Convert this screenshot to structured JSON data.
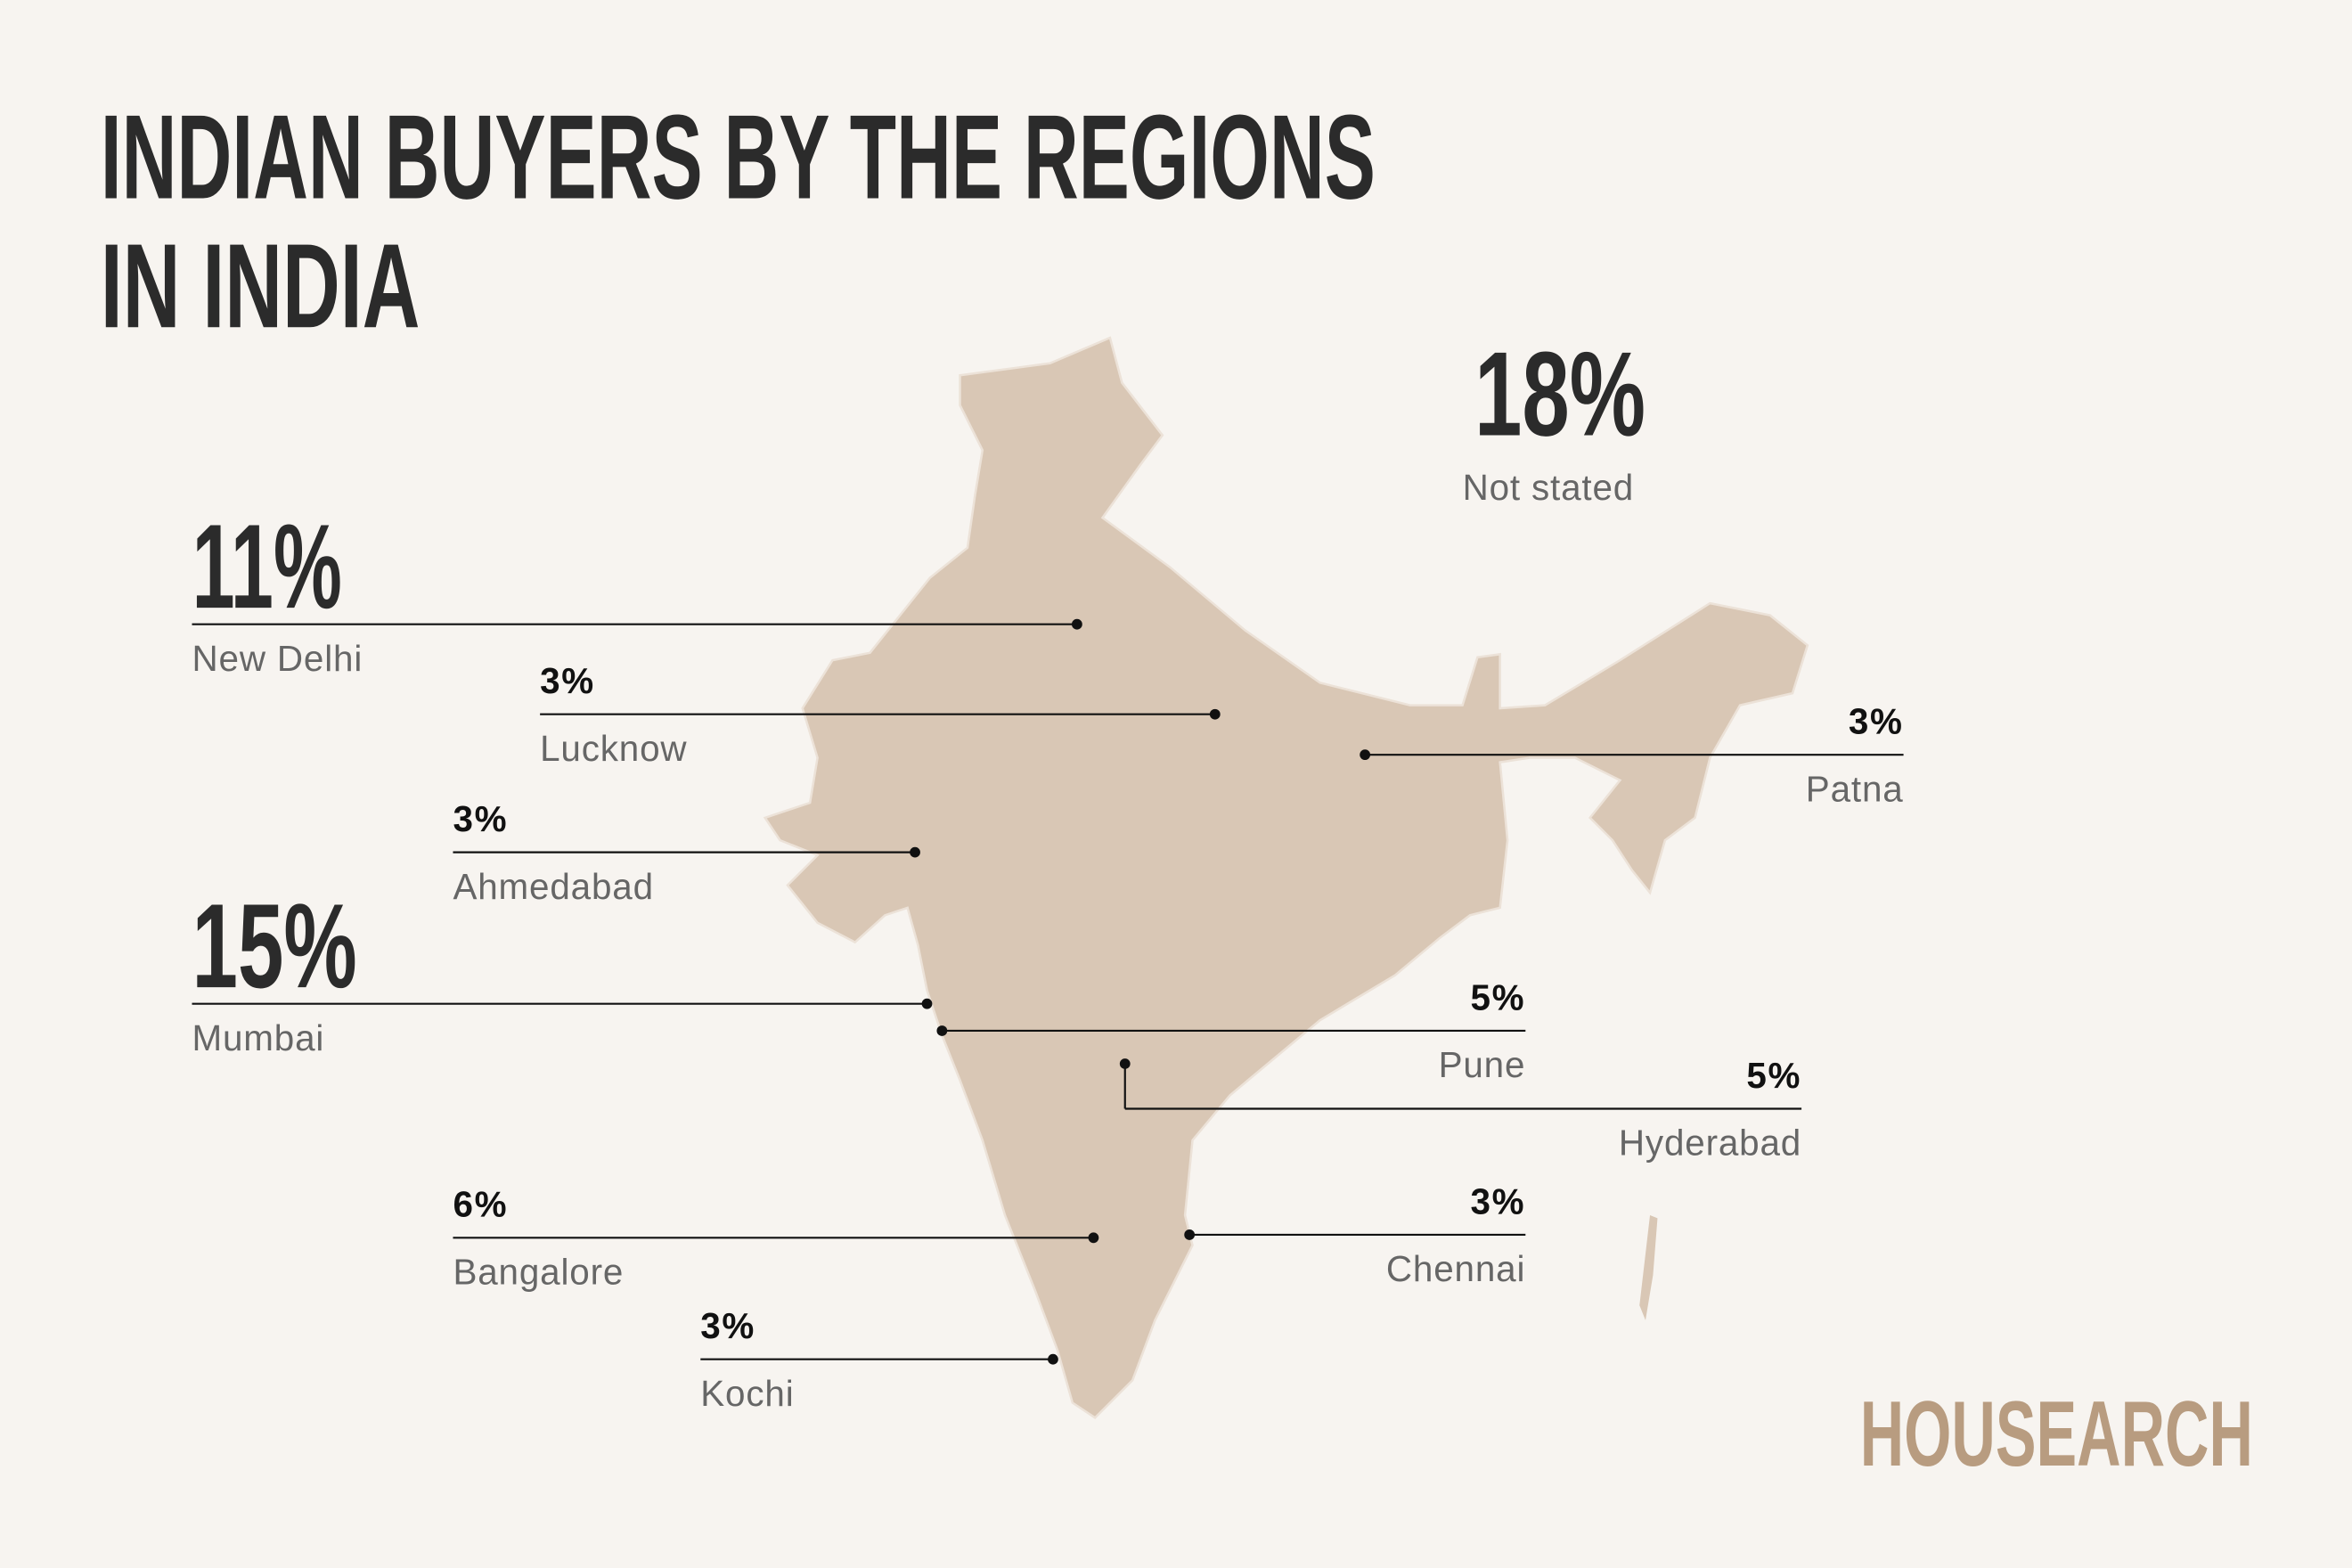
{
  "title": [
    "INDIAN BUYERS BY THE REGIONS",
    "IN INDIA"
  ],
  "not_stated": {
    "share": "18%",
    "label": "Not stated"
  },
  "cities": [
    {
      "name": "New Delhi",
      "share": "11%"
    },
    {
      "name": "Lucknow",
      "share": "3%"
    },
    {
      "name": "Ahmedabad",
      "share": "3%"
    },
    {
      "name": "Mumbai",
      "share": "15%"
    },
    {
      "name": "Patna",
      "share": "3%"
    },
    {
      "name": "Pune",
      "share": "5%"
    },
    {
      "name": "Hyderabad",
      "share": "5%"
    },
    {
      "name": "Bangalore",
      "share": "6%"
    },
    {
      "name": "Chennai",
      "share": "3%"
    },
    {
      "name": "Kochi",
      "share": "3%"
    }
  ],
  "brand": "HOUSEARCH"
}
